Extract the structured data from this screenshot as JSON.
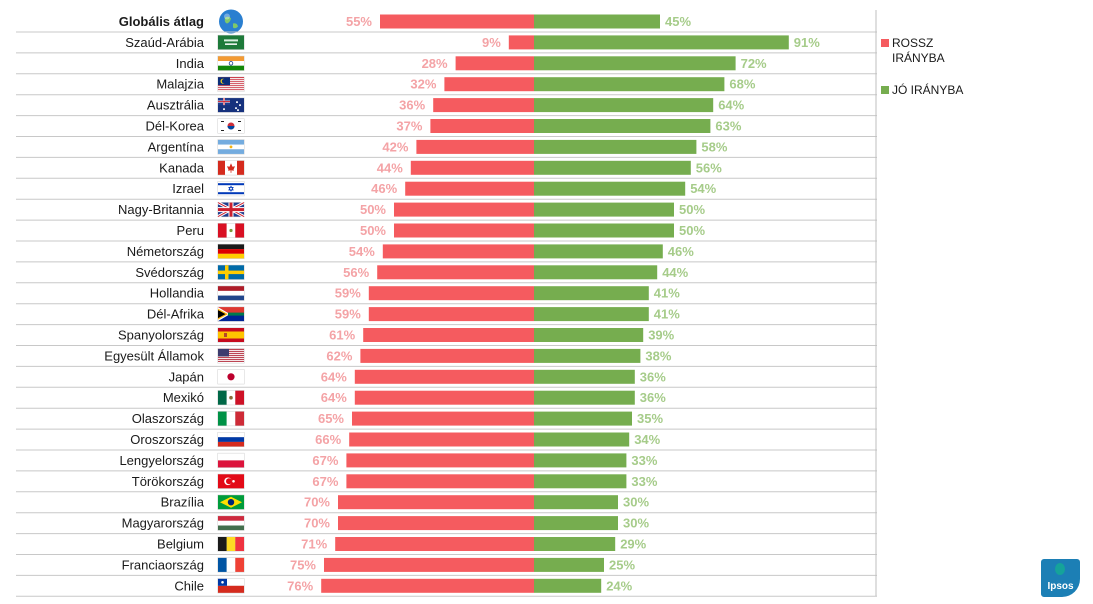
{
  "chart_data": {
    "type": "bar",
    "orientation": "horizontal-diverging",
    "series": [
      {
        "name": "ROSSZ IRÁNYBA",
        "color": "#f55b5f",
        "label_color": "#f4a3a6"
      },
      {
        "name": "JÓ IRÁNYBA",
        "color": "#76ad4f",
        "label_color": "#a6cc8a"
      }
    ],
    "categories": [
      "Globális átlag",
      "Szaúd-Arábia",
      "India",
      "Malajzia",
      "Ausztrália",
      "Dél-Korea",
      "Argentína",
      "Kanada",
      "Izrael",
      "Nagy-Britannia",
      "Peru",
      "Németország",
      "Svédország",
      "Hollandia",
      "Dél-Afrika",
      "Spanyolország",
      "Egyesült Államok",
      "Japán",
      "Mexikó",
      "Olaszország",
      "Oroszország",
      "Lengyelország",
      "Törökország",
      "Brazília",
      "Magyarország",
      "Belgium",
      "Franciaország",
      "Chile"
    ],
    "wrong": [
      55,
      9,
      28,
      32,
      36,
      37,
      42,
      44,
      46,
      50,
      50,
      54,
      56,
      59,
      59,
      61,
      62,
      64,
      64,
      65,
      66,
      67,
      67,
      70,
      70,
      71,
      75,
      76
    ],
    "right": [
      45,
      91,
      72,
      68,
      64,
      63,
      58,
      56,
      54,
      50,
      50,
      46,
      44,
      41,
      41,
      39,
      38,
      36,
      36,
      35,
      34,
      33,
      33,
      30,
      30,
      29,
      25,
      24
    ],
    "wrong_labels": [
      "55%",
      "9%",
      "28%",
      "32%",
      "36%",
      "37%",
      "42%",
      "44%",
      "46%",
      "50%",
      "50%",
      "54%",
      "56%",
      "59%",
      "59%",
      "61%",
      "62%",
      "64%",
      "64%",
      "65%",
      "66%",
      "67%",
      "67%",
      "70%",
      "70%",
      "71%",
      "75%",
      "76%"
    ],
    "right_labels": [
      "45%",
      "91%",
      "72%",
      "68%",
      "64%",
      "63%",
      "58%",
      "56%",
      "54%",
      "50%",
      "50%",
      "46%",
      "44%",
      "41%",
      "41%",
      "39%",
      "38%",
      "36%",
      "36%",
      "35%",
      "34%",
      "33%",
      "33%",
      "30%",
      "30%",
      "29%",
      "25%",
      "24%"
    ],
    "flags": [
      "globe-icon",
      "saudi-arabia-flag-icon",
      "india-flag-icon",
      "malaysia-flag-icon",
      "australia-flag-icon",
      "south-korea-flag-icon",
      "argentina-flag-icon",
      "canada-flag-icon",
      "israel-flag-icon",
      "uk-flag-icon",
      "peru-flag-icon",
      "germany-flag-icon",
      "sweden-flag-icon",
      "netherlands-flag-icon",
      "south-africa-flag-icon",
      "spain-flag-icon",
      "usa-flag-icon",
      "japan-flag-icon",
      "mexico-flag-icon",
      "italy-flag-icon",
      "russia-flag-icon",
      "poland-flag-icon",
      "turkey-flag-icon",
      "brazil-flag-icon",
      "hungary-flag-icon",
      "belgium-flag-icon",
      "france-flag-icon",
      "chile-flag-icon"
    ],
    "xlim": [
      0,
      100
    ],
    "legend": [
      "ROSSZ IRÁNYBA",
      "JÓ IRÁNYBA"
    ],
    "legend_lines": [
      [
        "ROSSZ",
        "IRÁNYBA"
      ],
      [
        "JÓ IRÁNYBA"
      ]
    ],
    "legend_position": "right"
  },
  "logo": {
    "text": "Ipsos",
    "color": "#1c7fb5"
  }
}
